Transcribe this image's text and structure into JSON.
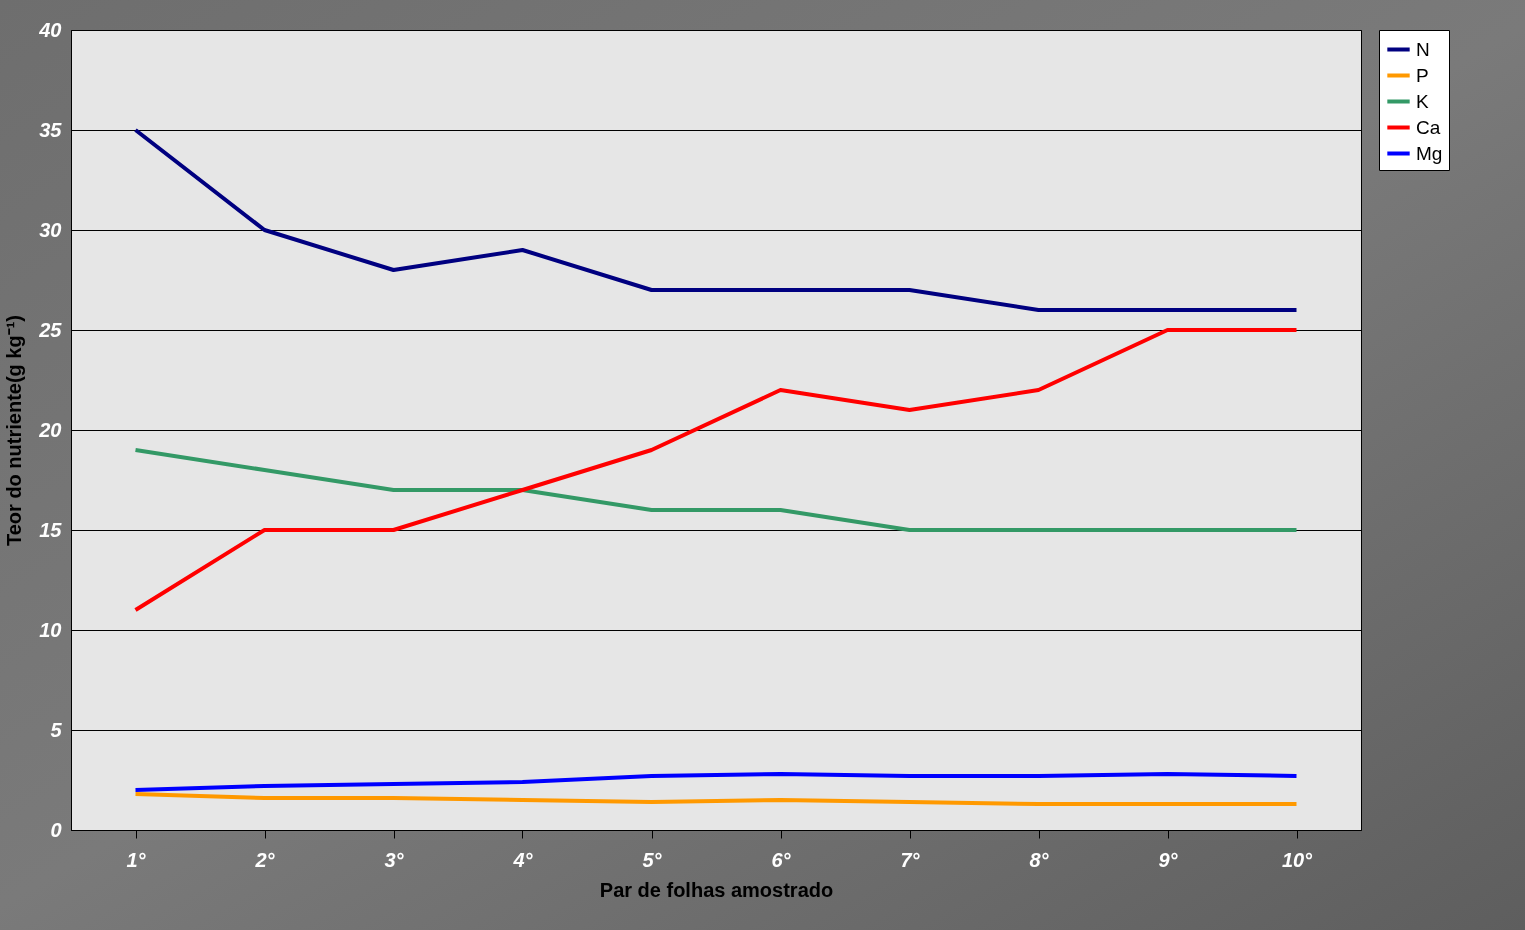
{
  "chart_data": {
    "type": "line",
    "xlabel": "Par de folhas amostrado",
    "ylabel": "Teor do nutriente(g kg⁻¹)",
    "categories": [
      "1°",
      "2°",
      "3°",
      "4°",
      "5°",
      "6°",
      "7°",
      "8°",
      "9°",
      "10°"
    ],
    "ylim": [
      0,
      40
    ],
    "yticks": [
      0,
      5,
      10,
      15,
      20,
      25,
      30,
      35,
      40
    ],
    "grid": "y",
    "legend": "right",
    "marker": "none",
    "line_style": "solid",
    "series": [
      {
        "name": "N",
        "color": "#000080",
        "values": [
          35,
          30,
          28,
          29,
          27,
          27,
          27,
          26,
          26,
          26
        ]
      },
      {
        "name": "P",
        "color": "#ff9900",
        "values": [
          1.8,
          1.6,
          1.6,
          1.5,
          1.4,
          1.5,
          1.4,
          1.3,
          1.3,
          1.3
        ]
      },
      {
        "name": "K",
        "color": "#339966",
        "values": [
          19,
          18,
          17,
          17,
          16,
          16,
          15,
          15,
          15,
          15
        ]
      },
      {
        "name": "Ca",
        "color": "#ff0000",
        "values": [
          11,
          15,
          15,
          17,
          19,
          22,
          21,
          22,
          25,
          25
        ]
      },
      {
        "name": "Mg",
        "color": "#0000ff",
        "values": [
          2.0,
          2.2,
          2.3,
          2.4,
          2.7,
          2.8,
          2.7,
          2.7,
          2.8,
          2.7
        ]
      }
    ]
  }
}
